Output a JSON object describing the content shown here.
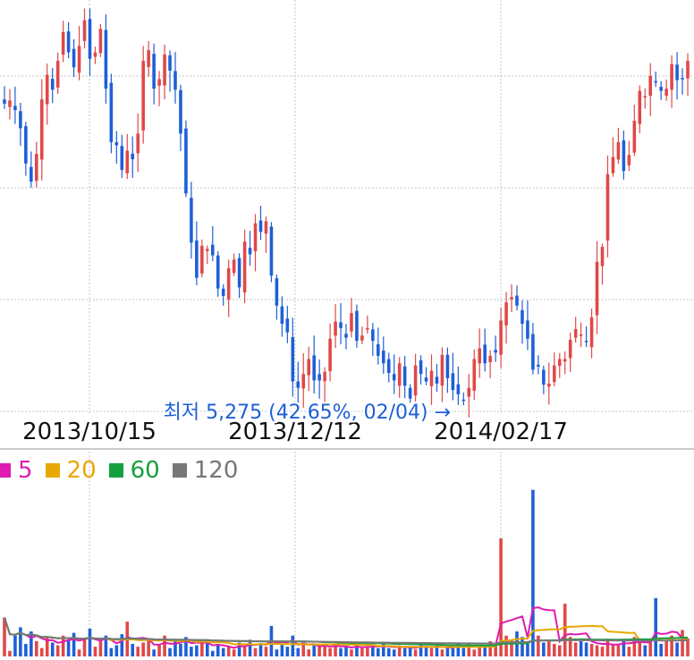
{
  "chart_data": [
    {
      "type": "candlestick",
      "title": "",
      "x_tick_labels": [
        "2013/10/15",
        "2013/12/12",
        "2014/02/17"
      ],
      "annotation": {
        "text": "최저 5,275 (42.65%, 02/04) →",
        "low_value": 5275,
        "date": "02/04"
      },
      "grid": true,
      "up_color": "#e04848",
      "down_color": "#1e5fd6",
      "closes": [
        7980,
        8010,
        7920,
        7750,
        7420,
        7250,
        7510,
        8020,
        8250,
        8110,
        8380,
        8650,
        8460,
        8320,
        8520,
        8760,
        8400,
        8460,
        8680,
        8120,
        7620,
        7590,
        7360,
        7540,
        7460,
        7700,
        8380,
        8480,
        8120,
        8210,
        8440,
        8290,
        8110,
        7700,
        7140,
        6680,
        6350,
        6650,
        6620,
        6560,
        6250,
        6180,
        6440,
        6520,
        6260,
        6690,
        6570,
        6860,
        6780,
        6880,
        6370,
        6090,
        5920,
        5840,
        5380,
        5320,
        5450,
        5590,
        5390,
        5390,
        5470,
        5780,
        5940,
        5880,
        5790,
        6020,
        5760,
        5810,
        5880,
        5760,
        5620,
        5550,
        5460,
        5390,
        5550,
        5340,
        5220,
        5530,
        5450,
        5380,
        5480,
        5360,
        5630,
        5410,
        5300,
        5260,
        5210,
        5320,
        5590,
        5690,
        5550,
        5620,
        5650,
        5950,
        6120,
        6170,
        6090,
        5920,
        5780,
        5490,
        5520,
        5350,
        5360,
        5530,
        5590,
        5590,
        5770,
        5870,
        5820,
        5750,
        5980,
        6500,
        6640,
        7320,
        7480,
        7620,
        7350,
        7500,
        7820,
        8100,
        8050,
        8240,
        8180,
        8100,
        8120,
        8350,
        8200,
        8220,
        8380
      ],
      "volumes": [
        56000,
        8000,
        30000,
        42000,
        18000,
        36000,
        22000,
        12000,
        28000,
        20000,
        16000,
        30000,
        24000,
        34000,
        10000,
        26000,
        40000,
        14000,
        22000,
        30000,
        12000,
        16000,
        32000,
        50000,
        18000,
        14000,
        20000,
        24000,
        10000,
        16000,
        30000,
        12000,
        24000,
        18000,
        28000,
        14000,
        16000,
        22000,
        20000,
        8000,
        18000,
        12000,
        14000,
        10000,
        20000,
        16000,
        24000,
        12000,
        18000,
        14000,
        44000,
        10000,
        18000,
        14000,
        30000,
        12000,
        20000,
        10000,
        16000,
        14000,
        18000,
        12000,
        16000,
        12000,
        14000,
        10000,
        18000,
        12000,
        14000,
        16000,
        12000,
        18000,
        12000,
        10000,
        16000,
        12000,
        14000,
        10000,
        18000,
        14000,
        12000,
        16000,
        10000,
        12000,
        14000,
        20000,
        12000,
        18000,
        10000,
        16000,
        14000,
        22000,
        16000,
        170000,
        30000,
        24000,
        36000,
        28000,
        20000,
        240000,
        30000,
        20000,
        24000,
        18000,
        16000,
        76000,
        28000,
        20000,
        22000,
        20000,
        18000,
        16000,
        14000,
        22000,
        16000,
        18000,
        24000,
        14000,
        28000,
        20000,
        16000,
        24000,
        84000,
        18000,
        22000,
        30000,
        20000,
        38000,
        26000
      ],
      "volume_moving_averages": [
        {
          "name": "5",
          "color": "#e01bb1"
        },
        {
          "name": "20",
          "color": "#e8a800"
        },
        {
          "name": "60",
          "color": "#15a040"
        },
        {
          "name": "120",
          "color": "#777777"
        }
      ]
    }
  ]
}
